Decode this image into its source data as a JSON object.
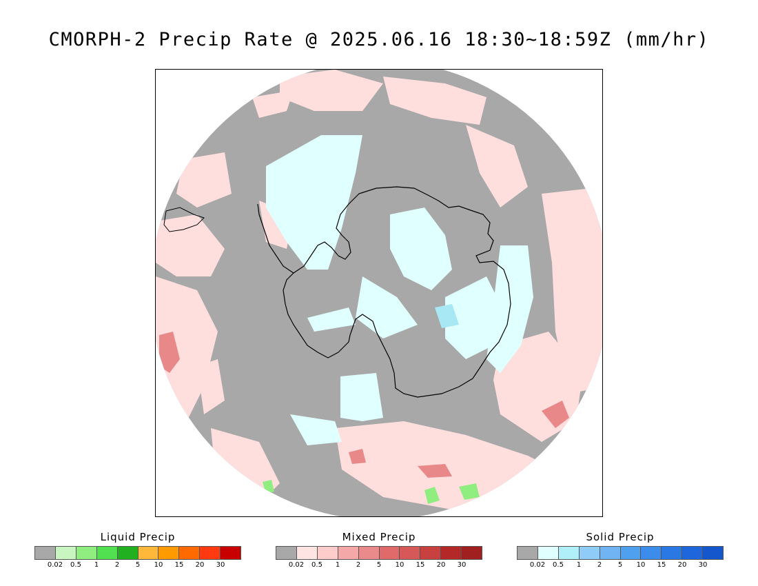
{
  "title": "CMORPH-2 Precip Rate @ 2025.06.16 18:30~18:59Z (mm/hr)",
  "map": {
    "projection": "south-polar-stereographic",
    "colors": {
      "ocean_no_precip": "#a8a8a8",
      "frame_bg": "#ffffff",
      "coast": "#000000"
    }
  },
  "legends": [
    {
      "id": "liquid",
      "title": "Liquid Precip",
      "colors": [
        "#a8a8a8",
        "#c8f5c0",
        "#90ee80",
        "#50e050",
        "#20b020",
        "#ffb83a",
        "#ff9a00",
        "#ff6a00",
        "#ff3a10",
        "#c80000"
      ],
      "ticks": [
        "0.02",
        "0.5",
        "1",
        "2",
        "5",
        "10",
        "15",
        "20",
        "30"
      ]
    },
    {
      "id": "mixed",
      "title": "Mixed Precip",
      "colors": [
        "#a8a8a8",
        "#ffe4e4",
        "#ffcccc",
        "#f4a8a8",
        "#ea8a8a",
        "#e06a6a",
        "#d65858",
        "#c84040",
        "#b42828",
        "#a02020"
      ],
      "ticks": [
        "0.02",
        "0.5",
        "1",
        "2",
        "5",
        "10",
        "15",
        "20",
        "30"
      ]
    },
    {
      "id": "solid",
      "title": "Solid Precip",
      "colors": [
        "#a8a8a8",
        "#e0ffff",
        "#b0eef8",
        "#90ccf8",
        "#70b4f4",
        "#50a0f0",
        "#3c8cec",
        "#2a78e4",
        "#1e66dc",
        "#1456cc"
      ],
      "ticks": [
        "0.02",
        "0.5",
        "1",
        "2",
        "5",
        "10",
        "15",
        "20",
        "30"
      ]
    }
  ]
}
